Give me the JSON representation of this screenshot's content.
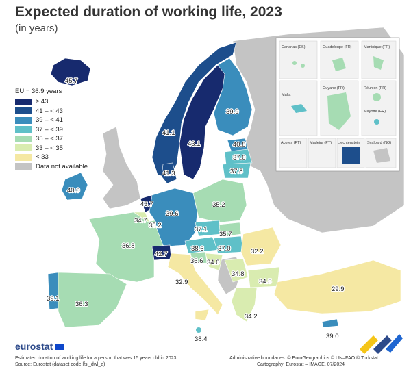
{
  "header": {
    "title": "Expected duration of working life, 2023",
    "subtitle": "(in years)"
  },
  "legend": {
    "title": "EU = 36.9 years",
    "items": [
      {
        "label": "≥ 43",
        "color": "#172a6e"
      },
      {
        "label": "41 – < 43",
        "color": "#1d4e8c"
      },
      {
        "label": "39 – < 41",
        "color": "#3a8dbc"
      },
      {
        "label": "37 – < 39",
        "color": "#5fc0c8"
      },
      {
        "label": "35 – < 37",
        "color": "#a6dcb3"
      },
      {
        "label": "33 – < 35",
        "color": "#d9ecb0"
      },
      {
        "label": "< 33",
        "color": "#f5e8a3"
      },
      {
        "label": "Data not available",
        "color": "#c4c4c4"
      }
    ]
  },
  "map_values": {
    "iceland": "45.7",
    "norway": "41.1",
    "sweden": "43.1",
    "finland": "39.9",
    "estonia": "40.8",
    "latvia": "37.0",
    "lithuania": "37.8",
    "denmark": "41.3",
    "ireland": "40.0",
    "netherlands": "43.7",
    "belgium": "34.7",
    "luxembourg": "35.2",
    "germany": "39.6",
    "poland": "35.2",
    "czechia": "37.1",
    "slovakia": "35.7",
    "austria": "38.6",
    "hungary": "37.0",
    "slovenia": "36.6",
    "croatia": "34.0",
    "romania": "32.2",
    "serbia": "34.8",
    "bulgaria": "34.5",
    "france": "36.8",
    "switzerland": "42.7",
    "italy": "32.9",
    "portugal": "39.1",
    "spain": "36.3",
    "greece": "34.2",
    "malta": "38.4",
    "turkiye": "29.9",
    "cyprus": "39.0"
  },
  "insets": [
    "Canarias (ES)",
    "Guadeloupe (FR)",
    "Martinique (FR)",
    "Réunion (FR)",
    "Malta",
    "Guyane (FR)",
    "Mayotte (FR)",
    "Açores (PT)",
    "Madeira (PT)",
    "Liechtenstein",
    "Svalbard (NO)"
  ],
  "footer": {
    "brand": "eurostat",
    "note_line1": "Estimated duration of working life for a person that was 15 years old in 2023.",
    "note_line2": "Source: Eurostat (dataset code lfsi_dwl_a)",
    "credit_line1": "Administrative boundaries: © EuroGeographics © UN–FAO © Turkstat",
    "credit_line2": "Cartography: Eurostat – IMAGE, 07/2024"
  }
}
